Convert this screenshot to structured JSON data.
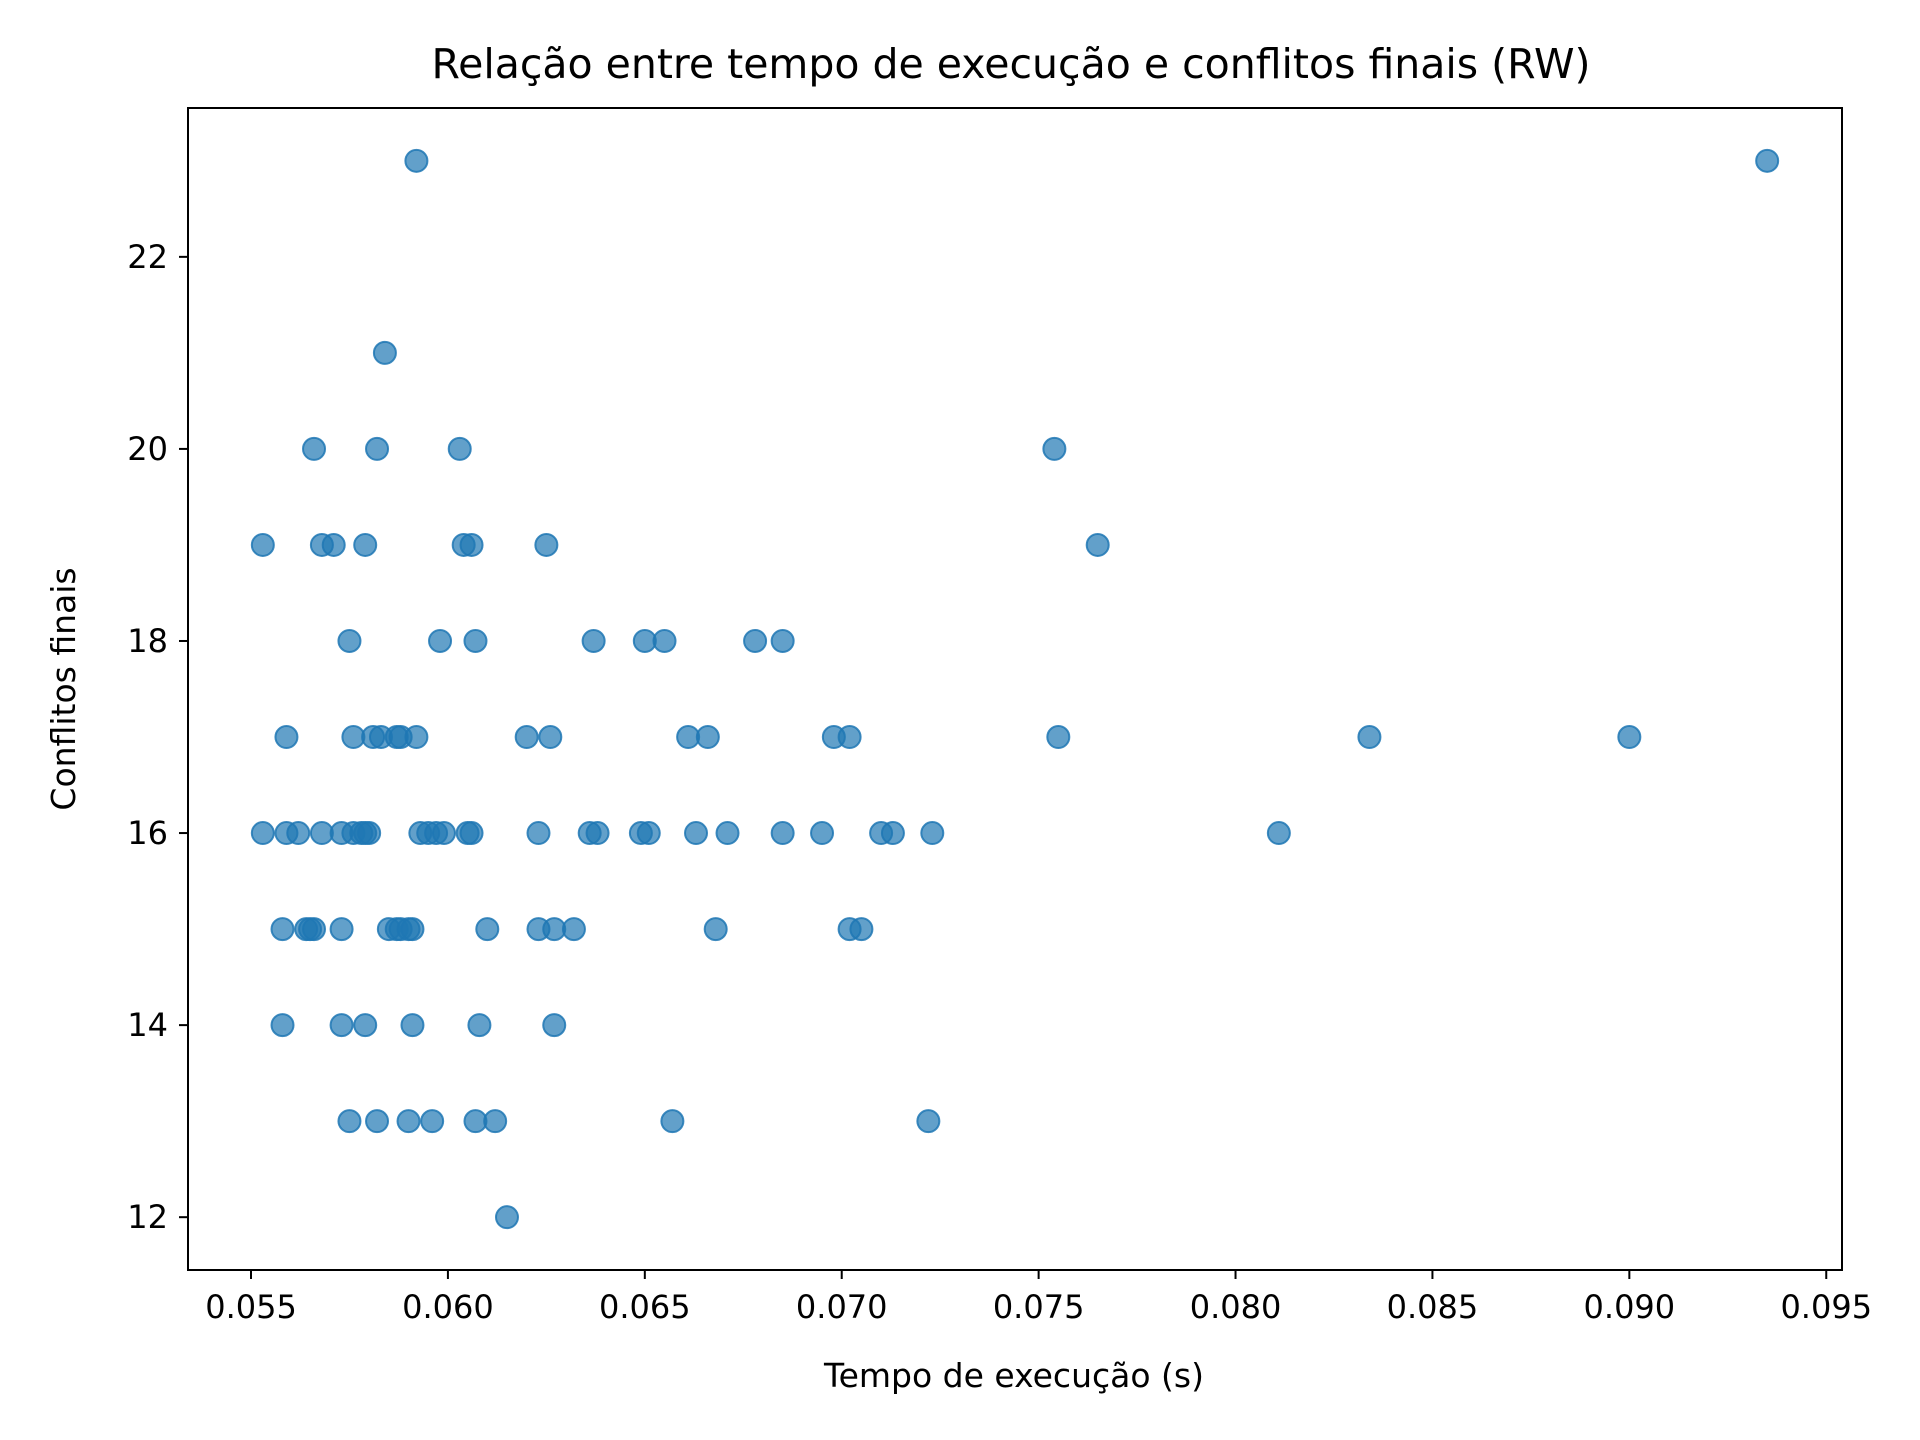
{
  "chart_data": {
    "type": "scatter",
    "title": "Relação entre tempo de execução e conflitos finais (RW)",
    "xlabel": "Tempo de execução (s)",
    "ylabel": "Conflitos finais",
    "xlim": [
      0.0534,
      0.0954
    ],
    "ylim": [
      11.45,
      23.55
    ],
    "xticks": [
      0.055,
      0.06,
      0.065,
      0.07,
      0.075,
      0.08,
      0.085,
      0.09,
      0.095
    ],
    "xtick_labels": [
      "0.055",
      "0.060",
      "0.065",
      "0.070",
      "0.075",
      "0.080",
      "0.085",
      "0.090",
      "0.095"
    ],
    "yticks": [
      12,
      14,
      16,
      18,
      20,
      22
    ],
    "ytick_labels": [
      "12",
      "14",
      "16",
      "18",
      "20",
      "22"
    ],
    "grid": false,
    "marker_color": "#1f77b4",
    "marker_opacity": 0.7,
    "series": [
      {
        "points": [
          {
            "x": 0.0592,
            "y": 23
          },
          {
            "x": 0.0935,
            "y": 23
          },
          {
            "x": 0.0584,
            "y": 21
          },
          {
            "x": 0.0566,
            "y": 20
          },
          {
            "x": 0.0582,
            "y": 20
          },
          {
            "x": 0.0603,
            "y": 20
          },
          {
            "x": 0.0754,
            "y": 20
          },
          {
            "x": 0.0553,
            "y": 19
          },
          {
            "x": 0.0568,
            "y": 19
          },
          {
            "x": 0.0571,
            "y": 19
          },
          {
            "x": 0.0579,
            "y": 19
          },
          {
            "x": 0.0604,
            "y": 19
          },
          {
            "x": 0.0606,
            "y": 19
          },
          {
            "x": 0.0625,
            "y": 19
          },
          {
            "x": 0.0765,
            "y": 19
          },
          {
            "x": 0.0575,
            "y": 18
          },
          {
            "x": 0.0598,
            "y": 18
          },
          {
            "x": 0.0607,
            "y": 18
          },
          {
            "x": 0.0637,
            "y": 18
          },
          {
            "x": 0.065,
            "y": 18
          },
          {
            "x": 0.0655,
            "y": 18
          },
          {
            "x": 0.0678,
            "y": 18
          },
          {
            "x": 0.0685,
            "y": 18
          },
          {
            "x": 0.0559,
            "y": 17
          },
          {
            "x": 0.0576,
            "y": 17
          },
          {
            "x": 0.0581,
            "y": 17
          },
          {
            "x": 0.0583,
            "y": 17
          },
          {
            "x": 0.0587,
            "y": 17
          },
          {
            "x": 0.0588,
            "y": 17
          },
          {
            "x": 0.0592,
            "y": 17
          },
          {
            "x": 0.062,
            "y": 17
          },
          {
            "x": 0.0626,
            "y": 17
          },
          {
            "x": 0.0661,
            "y": 17
          },
          {
            "x": 0.0666,
            "y": 17
          },
          {
            "x": 0.0698,
            "y": 17
          },
          {
            "x": 0.0702,
            "y": 17
          },
          {
            "x": 0.0755,
            "y": 17
          },
          {
            "x": 0.0834,
            "y": 17
          },
          {
            "x": 0.09,
            "y": 17
          },
          {
            "x": 0.0553,
            "y": 16
          },
          {
            "x": 0.0559,
            "y": 16
          },
          {
            "x": 0.0562,
            "y": 16
          },
          {
            "x": 0.0568,
            "y": 16
          },
          {
            "x": 0.0573,
            "y": 16
          },
          {
            "x": 0.0576,
            "y": 16
          },
          {
            "x": 0.0578,
            "y": 16
          },
          {
            "x": 0.0579,
            "y": 16
          },
          {
            "x": 0.058,
            "y": 16
          },
          {
            "x": 0.0593,
            "y": 16
          },
          {
            "x": 0.0595,
            "y": 16
          },
          {
            "x": 0.0597,
            "y": 16
          },
          {
            "x": 0.0599,
            "y": 16
          },
          {
            "x": 0.0605,
            "y": 16
          },
          {
            "x": 0.0606,
            "y": 16
          },
          {
            "x": 0.0623,
            "y": 16
          },
          {
            "x": 0.0636,
            "y": 16
          },
          {
            "x": 0.0638,
            "y": 16
          },
          {
            "x": 0.0649,
            "y": 16
          },
          {
            "x": 0.0651,
            "y": 16
          },
          {
            "x": 0.0663,
            "y": 16
          },
          {
            "x": 0.0671,
            "y": 16
          },
          {
            "x": 0.0685,
            "y": 16
          },
          {
            "x": 0.0695,
            "y": 16
          },
          {
            "x": 0.071,
            "y": 16
          },
          {
            "x": 0.0713,
            "y": 16
          },
          {
            "x": 0.0723,
            "y": 16
          },
          {
            "x": 0.0811,
            "y": 16
          },
          {
            "x": 0.0558,
            "y": 15
          },
          {
            "x": 0.0564,
            "y": 15
          },
          {
            "x": 0.0565,
            "y": 15
          },
          {
            "x": 0.0566,
            "y": 15
          },
          {
            "x": 0.0573,
            "y": 15
          },
          {
            "x": 0.0585,
            "y": 15
          },
          {
            "x": 0.0587,
            "y": 15
          },
          {
            "x": 0.0588,
            "y": 15
          },
          {
            "x": 0.059,
            "y": 15
          },
          {
            "x": 0.0591,
            "y": 15
          },
          {
            "x": 0.061,
            "y": 15
          },
          {
            "x": 0.0623,
            "y": 15
          },
          {
            "x": 0.0627,
            "y": 15
          },
          {
            "x": 0.0632,
            "y": 15
          },
          {
            "x": 0.0668,
            "y": 15
          },
          {
            "x": 0.0702,
            "y": 15
          },
          {
            "x": 0.0705,
            "y": 15
          },
          {
            "x": 0.0558,
            "y": 14
          },
          {
            "x": 0.0573,
            "y": 14
          },
          {
            "x": 0.0579,
            "y": 14
          },
          {
            "x": 0.0591,
            "y": 14
          },
          {
            "x": 0.0608,
            "y": 14
          },
          {
            "x": 0.0627,
            "y": 14
          },
          {
            "x": 0.0575,
            "y": 13
          },
          {
            "x": 0.0582,
            "y": 13
          },
          {
            "x": 0.059,
            "y": 13
          },
          {
            "x": 0.0596,
            "y": 13
          },
          {
            "x": 0.0607,
            "y": 13
          },
          {
            "x": 0.0612,
            "y": 13
          },
          {
            "x": 0.0657,
            "y": 13
          },
          {
            "x": 0.0722,
            "y": 13
          },
          {
            "x": 0.0615,
            "y": 12
          }
        ]
      }
    ]
  }
}
